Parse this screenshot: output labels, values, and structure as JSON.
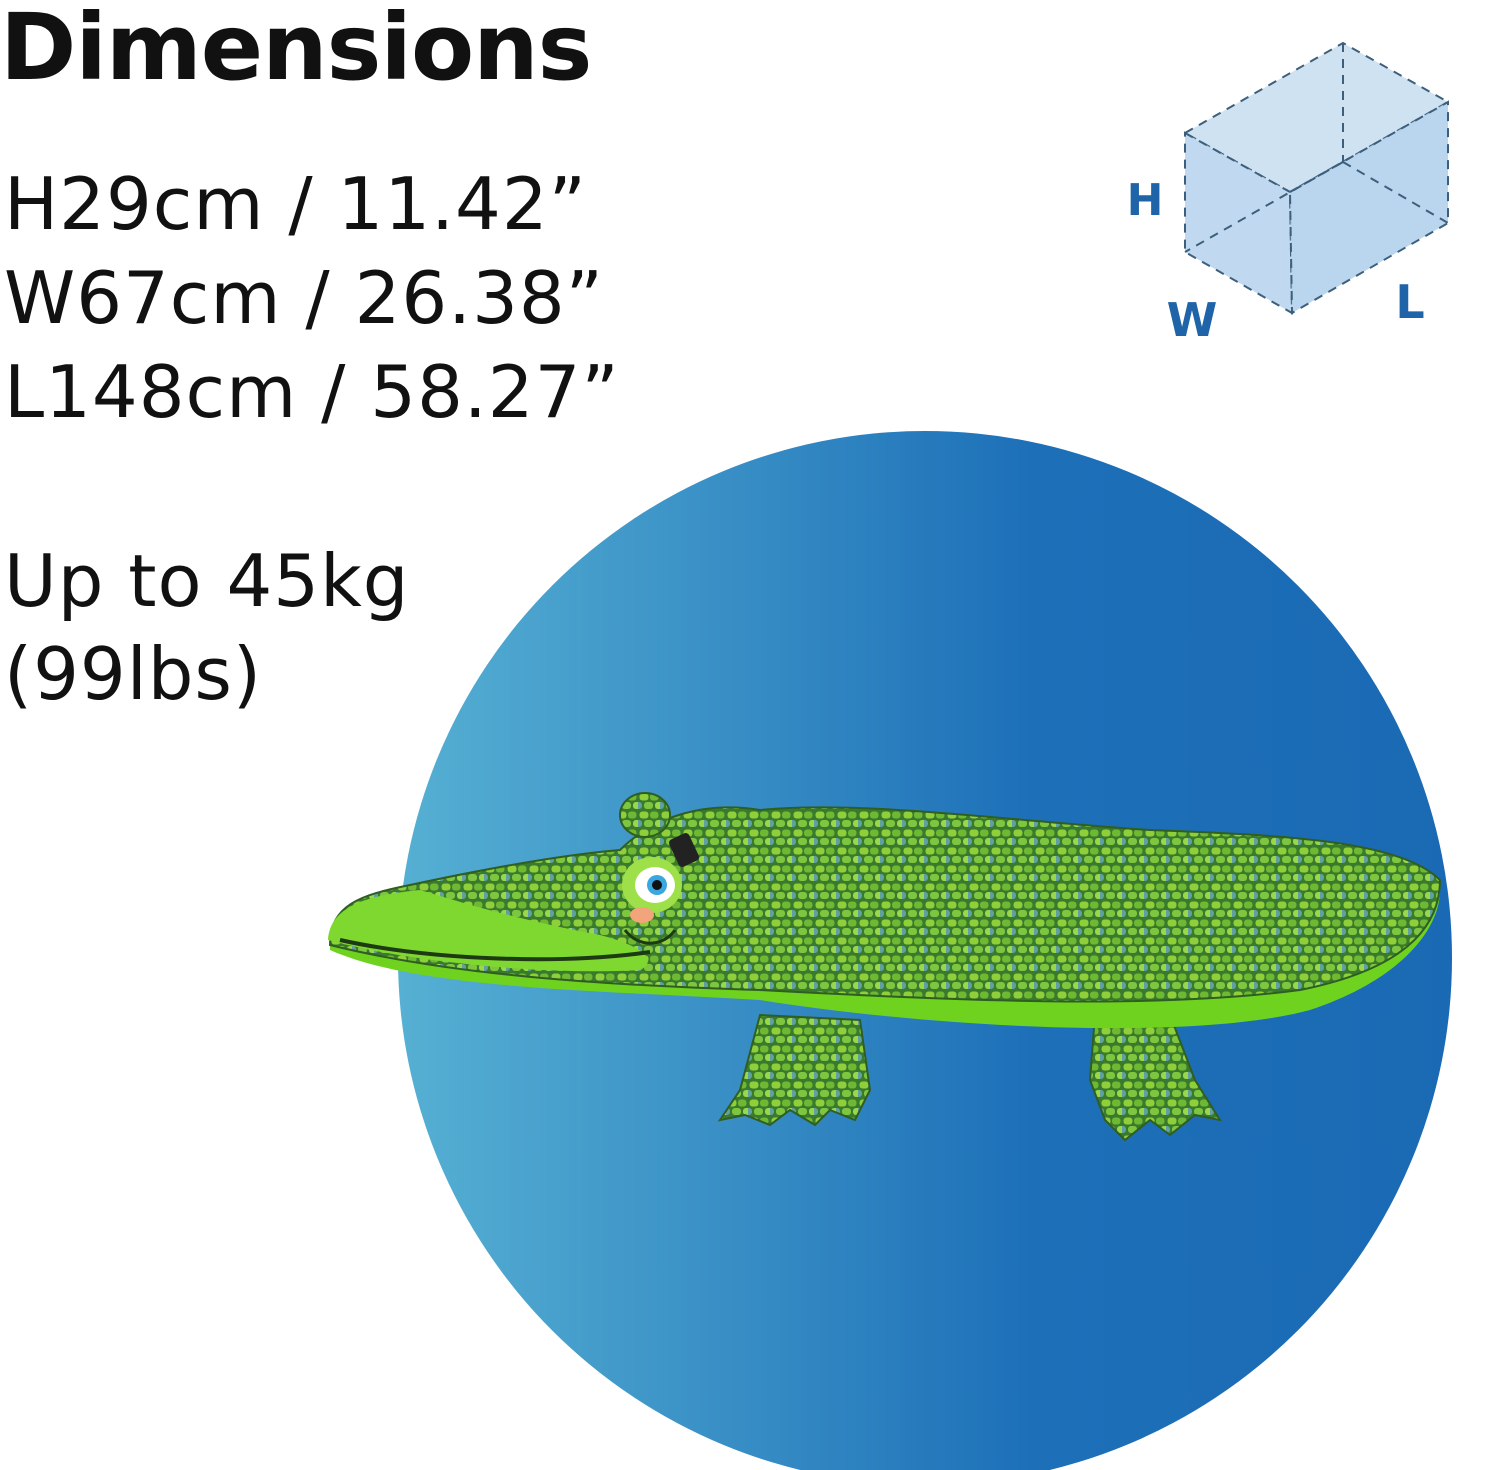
{
  "title": "Dimensions",
  "dimensions": [
    "H29cm / 11.42”",
    "W67cm / 26.38”",
    "L148cm / 58.27”"
  ],
  "weight": {
    "line1": "Up to 45kg",
    "line2": "(99lbs)"
  },
  "cube_labels": {
    "h": "H",
    "w": "W",
    "l": "L"
  },
  "colors": {
    "cube_label": "#1f63a8",
    "circle_light": "#4fa8cf",
    "circle_dark": "#1766b5",
    "croc_green": "#6fd21f",
    "croc_scales": "#3f7d2a"
  },
  "icons": [
    "box-dimension-icon",
    "crocodile-float-image"
  ]
}
